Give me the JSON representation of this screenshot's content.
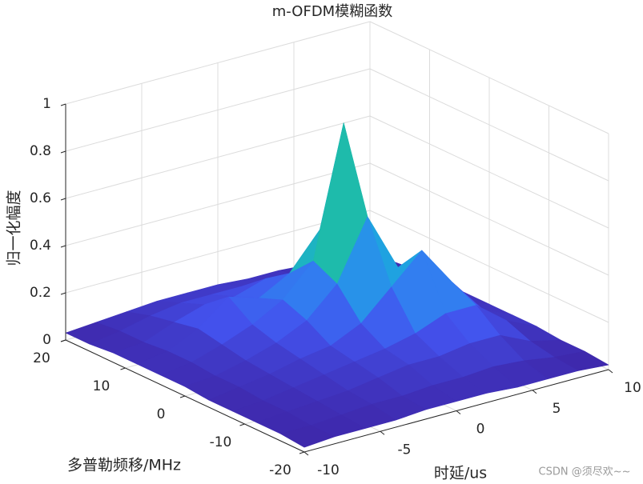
{
  "chart_data": {
    "type": "surface",
    "title": "m-OFDM模糊函数",
    "x_label": "时延/us",
    "y_label": "多普勒频移/MHz",
    "z_label": "归一化幅度",
    "x": [
      -10,
      -8,
      -6,
      -4,
      -2,
      0,
      2,
      4,
      6,
      8,
      10
    ],
    "y": [
      -20,
      -16,
      -12,
      -8,
      -4,
      0,
      4,
      8,
      12,
      16,
      20
    ],
    "z": [
      [
        0.02,
        0.03,
        0.03,
        0.03,
        0.04,
        0.04,
        0.04,
        0.03,
        0.03,
        0.03,
        0.02
      ],
      [
        0.03,
        0.03,
        0.04,
        0.05,
        0.05,
        0.06,
        0.06,
        0.07,
        0.06,
        0.04,
        0.03
      ],
      [
        0.03,
        0.04,
        0.05,
        0.06,
        0.08,
        0.1,
        0.1,
        0.12,
        0.12,
        0.06,
        0.03
      ],
      [
        0.03,
        0.04,
        0.06,
        0.08,
        0.1,
        0.12,
        0.15,
        0.2,
        0.2,
        0.1,
        0.04
      ],
      [
        0.03,
        0.05,
        0.07,
        0.1,
        0.12,
        0.18,
        0.3,
        0.42,
        0.25,
        0.1,
        0.04
      ],
      [
        0.04,
        0.05,
        0.08,
        0.12,
        0.18,
        0.3,
        0.55,
        0.3,
        0.18,
        0.08,
        0.04
      ],
      [
        0.04,
        0.06,
        0.1,
        0.15,
        0.22,
        0.35,
        0.9,
        0.35,
        0.15,
        0.08,
        0.04
      ],
      [
        0.04,
        0.06,
        0.12,
        0.22,
        0.18,
        0.25,
        0.4,
        0.2,
        0.12,
        0.06,
        0.04
      ],
      [
        0.04,
        0.05,
        0.1,
        0.14,
        0.14,
        0.18,
        0.15,
        0.12,
        0.08,
        0.05,
        0.04
      ],
      [
        0.03,
        0.05,
        0.08,
        0.1,
        0.1,
        0.1,
        0.08,
        0.07,
        0.05,
        0.04,
        0.03
      ],
      [
        0.03,
        0.04,
        0.05,
        0.06,
        0.06,
        0.06,
        0.05,
        0.05,
        0.04,
        0.03,
        0.03
      ]
    ],
    "xlim": [
      -10,
      10
    ],
    "xticks": [
      -10,
      -5,
      0,
      5,
      10
    ],
    "ylim": [
      -20,
      20
    ],
    "yticks": [
      -20,
      -10,
      0,
      10,
      20
    ],
    "zlim": [
      0,
      1
    ],
    "zticks": [
      0,
      0.2,
      0.4,
      0.6,
      0.8,
      1
    ],
    "grid": true,
    "colormap": "parula",
    "watermark": "CSDN @须尽欢~~"
  }
}
